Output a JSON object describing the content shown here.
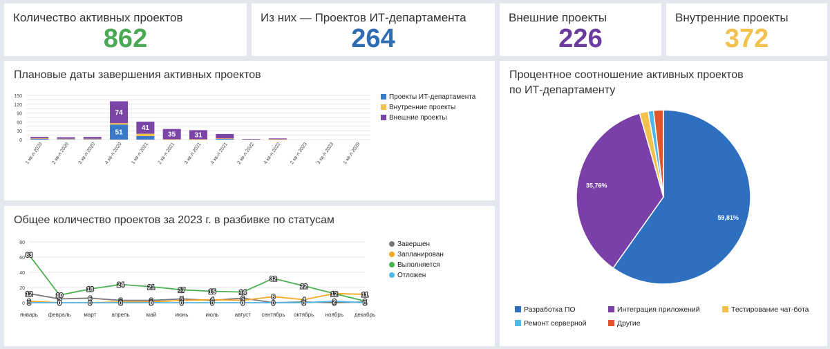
{
  "kpis": [
    {
      "title": "Количество активных проектов",
      "value": "862",
      "color": "#4aa856"
    },
    {
      "title": "Из них — Проектов ИТ-департамента",
      "value": "264",
      "color": "#2e6db4"
    },
    {
      "title": "Внешние проекты",
      "value": "226",
      "color": "#6b3c9e"
    },
    {
      "title": "Внутренние проекты",
      "value": "372",
      "color": "#f2c14e"
    }
  ],
  "bar_panel": {
    "title": "Плановые даты завершения активных проектов"
  },
  "line_panel": {
    "title": "Общее количество проектов за 2023 г. в разбивке по статусам"
  },
  "pie_panel": {
    "title_line1": "Процентное соотношение активных проектов",
    "title_line2": "по ИТ-департаменту"
  },
  "chart_data": [
    {
      "type": "bar",
      "stacked": true,
      "categories": [
        "1 кв-л 2020",
        "2 кв-л 2020",
        "3 кв-л 2020",
        "4 кв-л 2020",
        "1 кв-л 2021",
        "2 кв-л 2021",
        "3 кв-л 2021",
        "4 кв-л 2021",
        "2 кв-л 2022",
        "4 кв-л 2022",
        "2 кв-л 2023",
        "3 кв-л 2023",
        "1 кв-л 2029"
      ],
      "series": [
        {
          "name": "Проекты ИТ-департамента",
          "color": "#3a78c9",
          "values": [
            3,
            2,
            2,
            51,
            12,
            0,
            0,
            3,
            0,
            0,
            0,
            0,
            0
          ],
          "labels": [
            "",
            "",
            "",
            "51",
            "",
            "",
            "",
            "",
            "",
            "",
            "",
            "",
            ""
          ]
        },
        {
          "name": "Внутренние проекты",
          "color": "#f2c14e",
          "values": [
            1,
            1,
            1,
            5,
            8,
            1,
            1,
            1,
            0,
            1,
            0,
            0,
            0
          ],
          "labels": [
            "",
            "",
            "",
            "",
            "",
            "",
            "",
            "",
            "",
            "",
            "",
            "",
            ""
          ]
        },
        {
          "name": "Внешние проекты",
          "color": "#7b45a8",
          "values": [
            5,
            5,
            6,
            74,
            41,
            35,
            31,
            15,
            2,
            3,
            0,
            0,
            0
          ],
          "labels": [
            "",
            "",
            "",
            "74",
            "41",
            "35",
            "31",
            "",
            "",
            "",
            "",
            "",
            ""
          ]
        }
      ],
      "ylim": [
        0,
        150
      ],
      "yticks": [
        0,
        15,
        30,
        45,
        60,
        75,
        90,
        105,
        120,
        135,
        150
      ],
      "yticklabels": [
        "0",
        "",
        "30",
        "",
        "60",
        "",
        "90",
        "",
        "120",
        "",
        "150"
      ],
      "legend": "right"
    },
    {
      "type": "line",
      "categories": [
        "январь",
        "февраль",
        "март",
        "апрель",
        "май",
        "июнь",
        "июль",
        "август",
        "сентябрь",
        "октябрь",
        "ноябрь",
        "декабрь"
      ],
      "series": [
        {
          "name": "Завершен",
          "color": "#777777",
          "values": [
            12,
            5,
            6,
            3,
            3,
            5,
            3,
            6,
            0,
            1,
            0,
            1
          ]
        },
        {
          "name": "Запланирован",
          "color": "#f5a623",
          "values": [
            2,
            0,
            0,
            1,
            1,
            3,
            4,
            3,
            8,
            4,
            12,
            11
          ]
        },
        {
          "name": "Выполняется",
          "color": "#4caf50",
          "values": [
            63,
            10,
            18,
            24,
            21,
            17,
            15,
            14,
            32,
            22,
            12,
            2
          ]
        },
        {
          "name": "Отложен",
          "color": "#4fb6e8",
          "values": [
            0,
            0,
            0,
            0,
            0,
            0,
            0,
            0,
            0,
            0,
            2,
            0
          ]
        }
      ],
      "label_series": "Выполняется",
      "ylim": [
        0,
        80
      ],
      "yticks": [
        0,
        20,
        40,
        60,
        80
      ],
      "legend": "right"
    },
    {
      "type": "pie",
      "slices": [
        {
          "name": "Разработка ПО",
          "value": 59.81,
          "label": "59,81%",
          "color": "#2e6fbf"
        },
        {
          "name": "Интеграция приложений",
          "value": 35.76,
          "label": "35,76%",
          "color": "#7b3fa8"
        },
        {
          "name": "Тестирование чат-бота",
          "value": 1.6,
          "label": "",
          "color": "#f2c14e"
        },
        {
          "name": "Ремонт серверной",
          "value": 1.0,
          "label": "",
          "color": "#4fb6e8"
        },
        {
          "name": "Другие",
          "value": 1.83,
          "label": "",
          "color": "#e3562b"
        }
      ],
      "legend": "bottom"
    }
  ]
}
